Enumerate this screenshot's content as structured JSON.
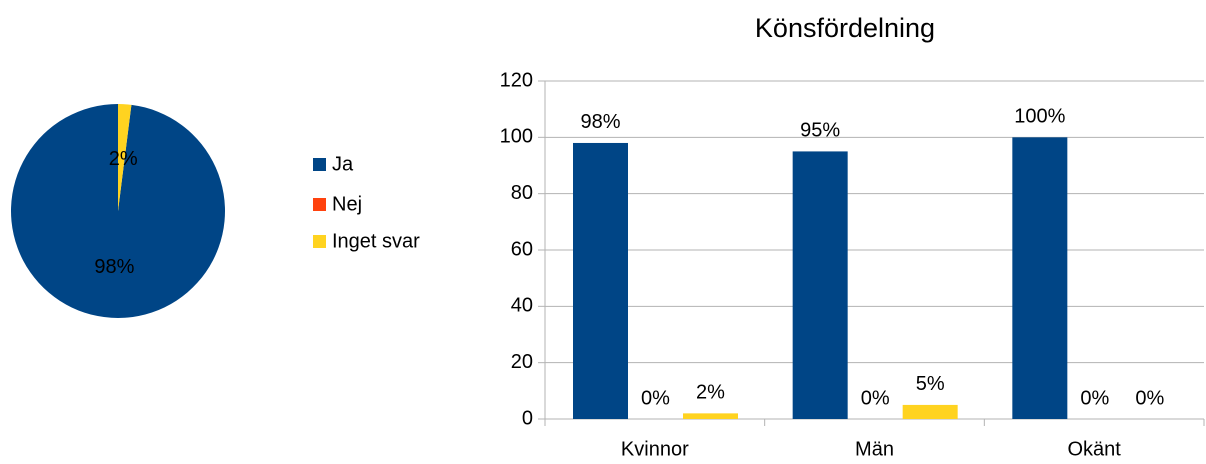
{
  "chart_data": [
    {
      "type": "pie",
      "categories": [
        "Ja",
        "Nej",
        "Inget svar"
      ],
      "values": [
        98,
        0,
        2
      ],
      "value_labels": [
        "98%",
        null,
        "2%"
      ],
      "colors": [
        "#004586",
        "#ff420e",
        "#ffd320"
      ]
    },
    {
      "type": "bar",
      "title": "Könsfördelning",
      "categories": [
        "Kvinnor",
        "Män",
        "Okänt"
      ],
      "series": [
        {
          "color": "#004586",
          "values": [
            98,
            95,
            100
          ],
          "value_labels": [
            "98%",
            "95%",
            "100%"
          ]
        },
        {
          "color": "#ff420e",
          "values": [
            0,
            0,
            0
          ],
          "value_labels": [
            "0%",
            "0%",
            "0%"
          ]
        },
        {
          "color": "#ffd320",
          "values": [
            2,
            5,
            0
          ],
          "value_labels": [
            "2%",
            "5%",
            "0%"
          ]
        }
      ],
      "ylim": [
        0,
        120
      ],
      "yticks": [
        0,
        20,
        40,
        60,
        80,
        100,
        120
      ],
      "grid": true
    }
  ]
}
